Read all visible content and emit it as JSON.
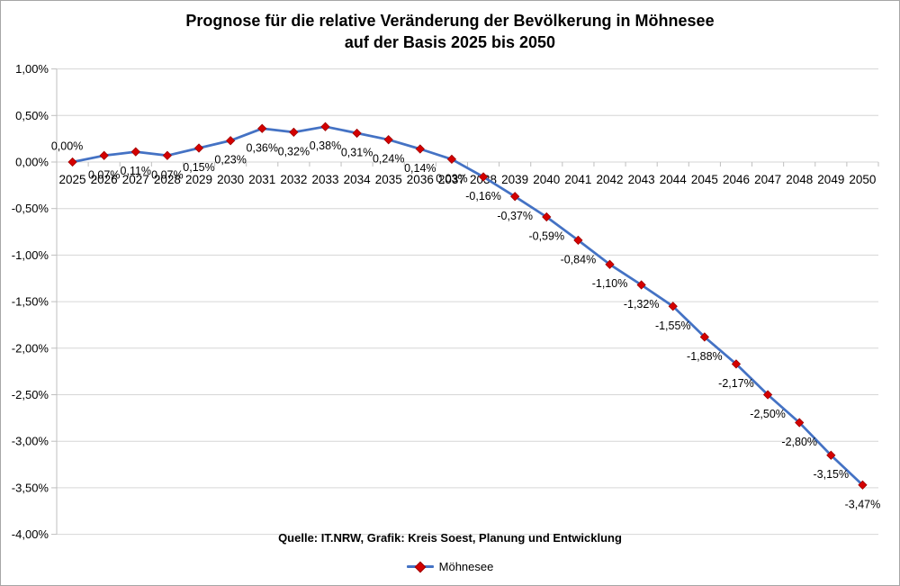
{
  "title": {
    "line1": "Prognose für die relative Veränderung der Bevölkerung in Möhnesee",
    "line2": "auf der Basis 2025 bis 2050"
  },
  "source_note": "Quelle: IT.NRW, Grafik: Kreis Soest, Planung und Entwicklung",
  "legend": {
    "series_label": "Möhnesee",
    "position": "bottom"
  },
  "colors": {
    "line": "#4472c4",
    "marker_fill": "#d40000",
    "marker_border": "#9c0000",
    "gridline": "#d6d6d6",
    "axis": "#bfbfbf",
    "text": "#000000",
    "frame": "#a6a6a6",
    "background": "#ffffff"
  },
  "chart_data": {
    "type": "line",
    "title": "Prognose für die relative Veränderung der Bevölkerung in Möhnesee auf der Basis 2025 bis 2050",
    "xlabel": "",
    "ylabel": "",
    "grid": true,
    "legend_position": "bottom",
    "ylim": [
      -4.0,
      1.0
    ],
    "ytick_step": 0.5,
    "ytick_labels": [
      "1,00%",
      "0,50%",
      "0,00%",
      "-0,50%",
      "-1,00%",
      "-1,50%",
      "-2,00%",
      "-2,50%",
      "-3,00%",
      "-3,50%",
      "-4,00%"
    ],
    "ytick_values": [
      1.0,
      0.5,
      0.0,
      -0.5,
      -1.0,
      -1.5,
      -2.0,
      -2.5,
      -3.0,
      -3.5,
      -4.0
    ],
    "categories": [
      "2025",
      "2026",
      "2027",
      "2028",
      "2029",
      "2030",
      "2031",
      "2032",
      "2033",
      "2034",
      "2035",
      "2036",
      "2037",
      "2038",
      "2039",
      "2040",
      "2041",
      "2042",
      "2043",
      "2044",
      "2045",
      "2046",
      "2047",
      "2048",
      "2049",
      "2050"
    ],
    "series": [
      {
        "name": "Möhnesee",
        "values": [
          0.0,
          0.07,
          0.11,
          0.07,
          0.15,
          0.23,
          0.36,
          0.32,
          0.38,
          0.31,
          0.24,
          0.14,
          0.03,
          -0.16,
          -0.37,
          -0.59,
          -0.84,
          -1.1,
          -1.32,
          -1.55,
          -1.88,
          -2.17,
          -2.5,
          -2.8,
          -3.15,
          -3.47
        ],
        "data_labels": [
          "0,00%",
          "0,07%",
          "0,11%",
          "0,07%",
          "0,15%",
          "0,23%",
          "0,36%",
          "0,32%",
          "0,38%",
          "0,31%",
          "0,24%",
          "0,14%",
          "0,03%",
          "-0,16%",
          "-0,37%",
          "-0,59%",
          "-0,84%",
          "-1,10%",
          "-1,32%",
          "-1,55%",
          "-1,88%",
          "-2,17%",
          "-2,50%",
          "-2,80%",
          "-3,15%",
          "-3,47%"
        ]
      }
    ]
  }
}
